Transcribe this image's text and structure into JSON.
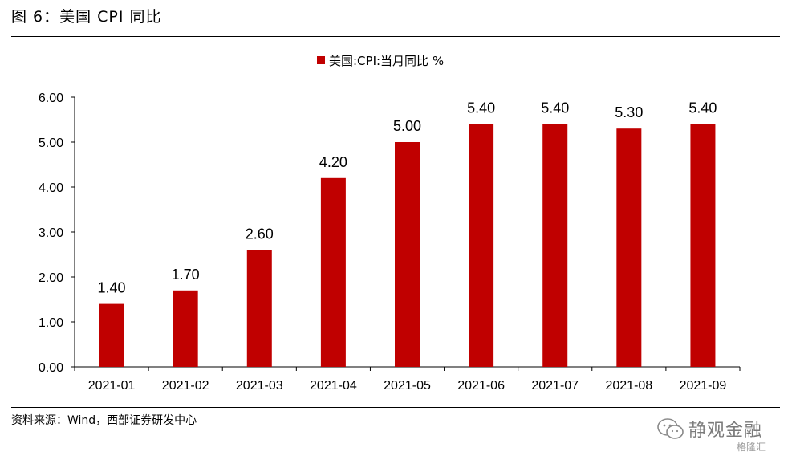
{
  "figure": {
    "title": "图 6：美国 CPI 同比",
    "source": "资料来源：Wind，西部证券研发中心",
    "watermark": {
      "text": "静观金融",
      "sub": "格隆汇",
      "icon": "wechat-icon"
    }
  },
  "chart_data": {
    "type": "bar",
    "categories": [
      "2021-01",
      "2021-02",
      "2021-03",
      "2021-04",
      "2021-05",
      "2021-06",
      "2021-07",
      "2021-08",
      "2021-09"
    ],
    "series": [
      {
        "name": "美国:CPI:当月同比 %",
        "values": [
          1.4,
          1.7,
          2.6,
          4.2,
          5.0,
          5.4,
          5.4,
          5.3,
          5.4
        ],
        "labels": [
          "1.40",
          "1.70",
          "2.60",
          "4.20",
          "5.00",
          "5.40",
          "5.40",
          "5.30",
          "5.40"
        ],
        "color": "#c00000"
      }
    ],
    "ylim": [
      0,
      6
    ],
    "yticks": [
      0,
      1,
      2,
      3,
      4,
      5,
      6
    ],
    "ytick_labels": [
      "0.00",
      "1.00",
      "2.00",
      "3.00",
      "4.00",
      "5.00",
      "6.00"
    ],
    "legend_position": "top-center",
    "grid": false
  }
}
